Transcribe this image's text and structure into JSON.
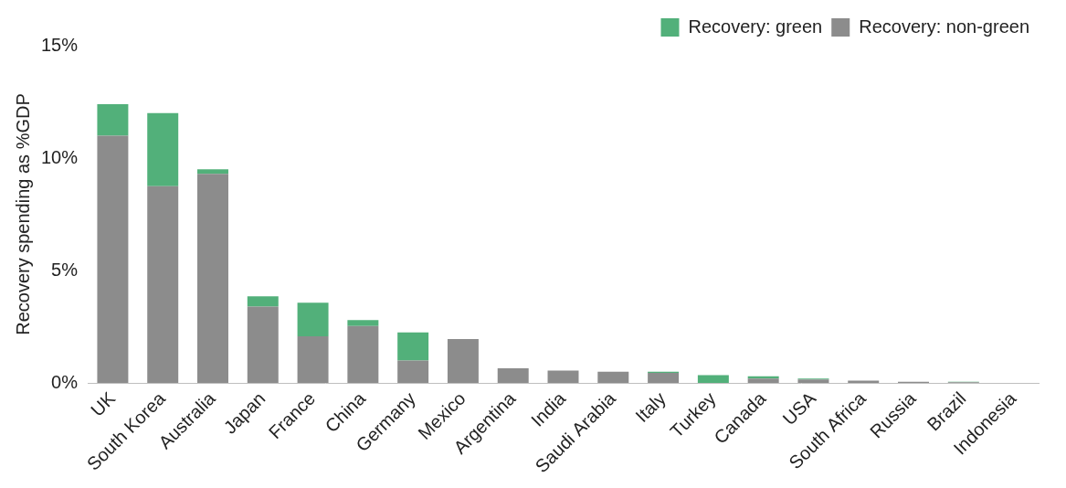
{
  "chart_data": {
    "type": "bar",
    "y_label": "Recovery spending as %GDP",
    "categories": [
      "UK",
      "South Korea",
      "Australia",
      "Japan",
      "France",
      "China",
      "Germany",
      "Mexico",
      "Argentina",
      "India",
      "Saudi Arabia",
      "Italy",
      "Turkey",
      "Canada",
      "USA",
      "South Africa",
      "Russia",
      "Brazil",
      "Indonesia"
    ],
    "series": [
      {
        "name": "Recovery: green",
        "color": "#52b07a",
        "values": [
          1.4,
          3.25,
          0.2,
          0.45,
          1.5,
          0.27,
          1.25,
          0,
          0,
          0,
          0,
          0.05,
          0.35,
          0.1,
          0.05,
          0,
          0,
          0.02,
          0
        ]
      },
      {
        "name": "Recovery: non-green",
        "color": "#8c8c8c",
        "values": [
          11.0,
          8.75,
          9.3,
          3.4,
          2.07,
          2.53,
          1.0,
          1.95,
          0.65,
          0.55,
          0.5,
          0.45,
          0,
          0.2,
          0.15,
          0.1,
          0.05,
          0.03,
          0
        ]
      }
    ],
    "stacked": true,
    "ylim": [
      0,
      15
    ],
    "yticks": [
      {
        "value": 0,
        "label": "0%"
      },
      {
        "value": 5,
        "label": "5%"
      },
      {
        "value": 10,
        "label": "10%"
      },
      {
        "value": 15,
        "label": "15%"
      }
    ],
    "grid": false,
    "legend": "top-right"
  }
}
